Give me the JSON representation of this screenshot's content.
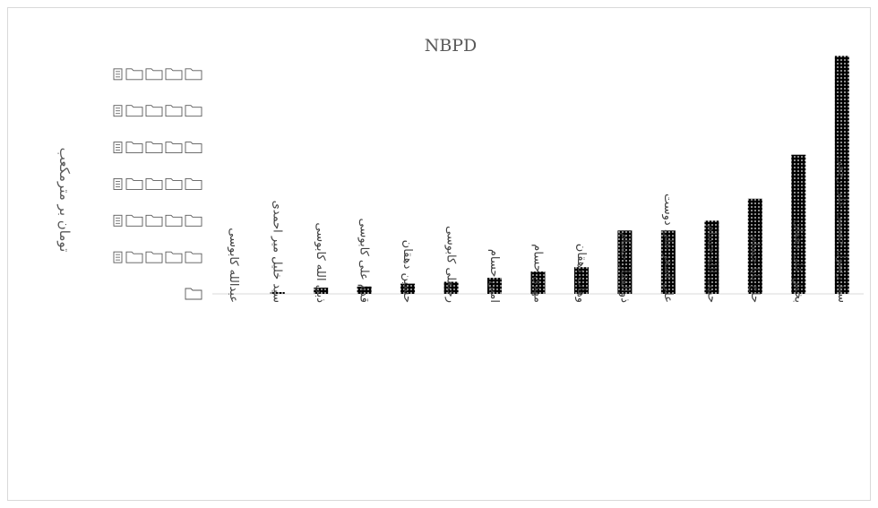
{
  "chart_data": {
    "type": "bar",
    "title": "NBPD",
    "xlabel": "",
    "ylabel": "تومان بر مترمکعب",
    "categories": [
      "عبدالله کابوسی",
      "سید خلیل میر احمدی",
      "ذبی الله کابوسی",
      "قدم علی کابوسی",
      "حسین دهقان",
      "رجبعلی کابوسی",
      "امین حسام",
      "مهدی حسام",
      "وهاب دهقان",
      "ذوالفقار حسام",
      "علی اصغر علی دوست",
      "حبیب الله حسام",
      "حاج بابا حسام",
      "بخش علی دهقان",
      "سید رسول حسینی علی رجعی"
    ],
    "values": [
      0.0,
      0.05,
      0.17,
      0.2,
      0.28,
      0.33,
      0.44,
      0.61,
      0.73,
      1.73,
      1.73,
      2.0,
      2.6,
      3.8,
      6.5
    ],
    "ylim": [
      0,
      7
    ],
    "y_tick_values": [
      0,
      1,
      2,
      3,
      4,
      5,
      6
    ],
    "y_tick_icons": [
      "folder-icon",
      "open-folder-icon",
      "document-icon",
      "text-document-icon",
      "stacked-pages-icon",
      "device-icon",
      "hourglass-icon"
    ],
    "bar_pattern": "dotted-black",
    "grid": false,
    "legend": "none"
  }
}
